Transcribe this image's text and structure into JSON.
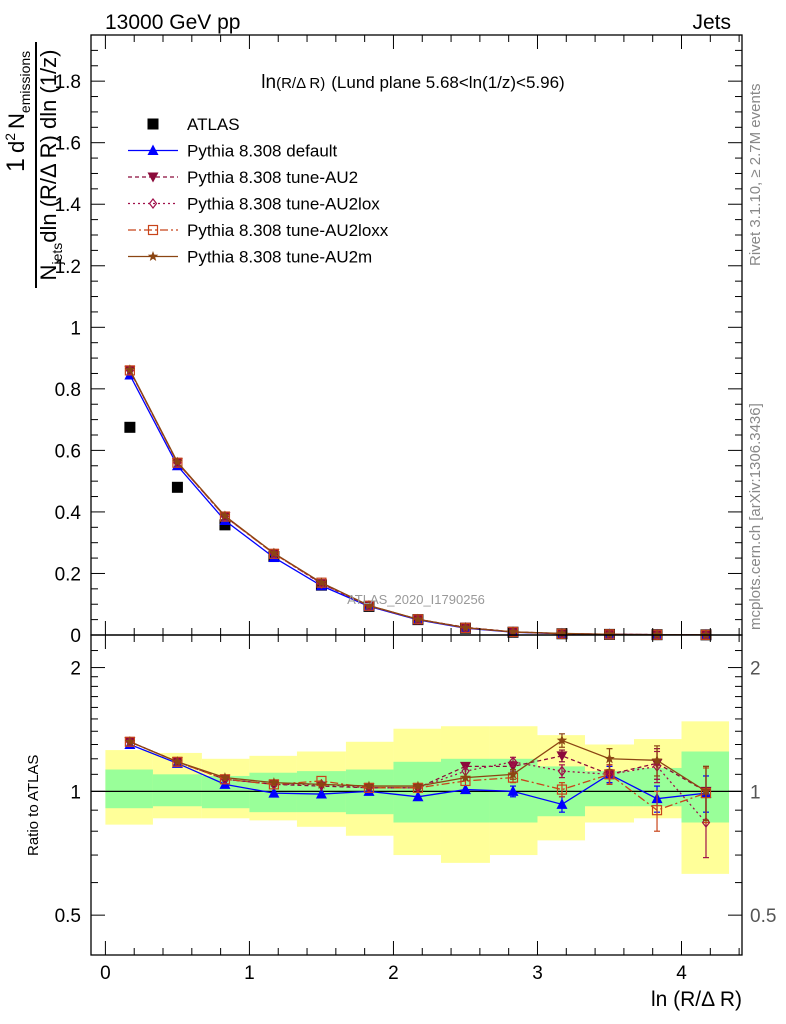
{
  "header": {
    "left": "13000 GeV pp",
    "right": "Jets"
  },
  "side": {
    "rivet": "Rivet 3.1.10, ≥ 2.7M events",
    "mcplots": "mcplots.cern.ch [arXiv:1306.3436]"
  },
  "title": {
    "ln_part": "ln",
    "arg_part": "(R/Δ R)",
    "rest": "(Lund plane 5.68<ln(1/z)<5.96)"
  },
  "watermark": "ATLAS_2020_I1790256",
  "ylabel": {
    "numer_base": "d",
    "numer_sup": "2",
    "numer_N": "N",
    "numer_sub": "emissions",
    "denom_N": "N",
    "denom_sub": "jets",
    "denom_rest": "dln (R/Δ R) dln (1/z)",
    "one": "1"
  },
  "ratio_ylabel": "Ratio to ATLAS",
  "xlabel": "ln (R/Δ R)",
  "legend": [
    {
      "label": "ATLAS",
      "color": "#000000",
      "marker": "square-filled",
      "dash": ""
    },
    {
      "label": "Pythia 8.308 default",
      "color": "#0000ff",
      "marker": "triangle-up",
      "dash": ""
    },
    {
      "label": "Pythia 8.308 tune-AU2",
      "color": "#8b0a3a",
      "marker": "triangle-down",
      "dash": "4,3"
    },
    {
      "label": "Pythia 8.308 tune-AU2lox",
      "color": "#a0104a",
      "marker": "diamond-open",
      "dash": "2,3"
    },
    {
      "label": "Pythia 8.308 tune-AU2loxx",
      "color": "#c8441a",
      "marker": "square-open",
      "dash": "8,3,2,3"
    },
    {
      "label": "Pythia 8.308 tune-AU2m",
      "color": "#8b4513",
      "marker": "star",
      "dash": ""
    }
  ],
  "chart_data": {
    "type": "line",
    "x": [
      0.17,
      0.5,
      0.83,
      1.17,
      1.5,
      1.83,
      2.17,
      2.5,
      2.83,
      3.17,
      3.5,
      3.83,
      4.17
    ],
    "xlim": [
      -0.1,
      4.42
    ],
    "xticks": [
      0,
      1,
      2,
      3,
      4
    ],
    "main": {
      "ylim": [
        0,
        1.95
      ],
      "yticks": [
        0,
        0.2,
        0.4,
        0.6,
        0.8,
        1,
        1.2,
        1.4,
        1.6,
        1.8
      ],
      "series": [
        {
          "name": "ATLAS",
          "values": [
            0.675,
            0.48,
            0.358,
            0.255,
            0.162,
            0.093,
            0.05,
            0.022,
            0.009,
            0.004,
            0.002,
            0.001,
            0.0005
          ]
        },
        {
          "name": "Pythia 8.308 default",
          "values": [
            0.845,
            0.55,
            0.372,
            0.252,
            0.16,
            0.093,
            0.049,
            0.022,
            0.009,
            0.004,
            0.0022,
            0.001,
            0.0005
          ]
        },
        {
          "name": "Pythia 8.308 tune-AU2",
          "values": [
            0.86,
            0.56,
            0.385,
            0.265,
            0.167,
            0.095,
            0.051,
            0.025,
            0.01,
            0.0048,
            0.0022,
            0.0012,
            0.0005
          ]
        },
        {
          "name": "Pythia 8.308 tune-AU2lox",
          "values": [
            0.86,
            0.56,
            0.385,
            0.265,
            0.167,
            0.095,
            0.051,
            0.024,
            0.01,
            0.0046,
            0.0022,
            0.0012,
            0.0004
          ]
        },
        {
          "name": "Pythia 8.308 tune-AU2loxx",
          "values": [
            0.86,
            0.56,
            0.385,
            0.264,
            0.17,
            0.095,
            0.051,
            0.023,
            0.01,
            0.004,
            0.0022,
            0.0009,
            0.0005
          ]
        },
        {
          "name": "Pythia 8.308 tune-AU2m",
          "values": [
            0.862,
            0.562,
            0.387,
            0.266,
            0.17,
            0.096,
            0.051,
            0.024,
            0.01,
            0.0054,
            0.0024,
            0.0012,
            0.0005
          ]
        }
      ]
    },
    "ratio": {
      "ylim": [
        0.4,
        2.4
      ],
      "ytick_values": [
        0.5,
        1,
        2
      ],
      "ytick_labels": [
        "0.5",
        "1",
        "2"
      ],
      "bins": [
        0,
        0.33,
        0.67,
        1.0,
        1.33,
        1.67,
        2.0,
        2.33,
        2.67,
        3.0,
        3.33,
        3.67,
        4.0,
        4.33
      ],
      "band_green": [
        [
          0.91,
          1.13
        ],
        [
          0.92,
          1.1
        ],
        [
          0.91,
          1.09
        ],
        [
          0.89,
          1.11
        ],
        [
          0.89,
          1.12
        ],
        [
          0.88,
          1.13
        ],
        [
          0.84,
          1.18
        ],
        [
          0.84,
          1.2
        ],
        [
          0.84,
          1.2
        ],
        [
          0.87,
          1.15
        ],
        [
          0.92,
          1.12
        ],
        [
          0.92,
          1.14
        ],
        [
          0.84,
          1.25
        ]
      ],
      "band_yellow": [
        [
          0.83,
          1.26
        ],
        [
          0.86,
          1.24
        ],
        [
          0.86,
          1.2
        ],
        [
          0.85,
          1.22
        ],
        [
          0.82,
          1.25
        ],
        [
          0.78,
          1.32
        ],
        [
          0.7,
          1.42
        ],
        [
          0.67,
          1.44
        ],
        [
          0.7,
          1.44
        ],
        [
          0.76,
          1.37
        ],
        [
          0.84,
          1.3
        ],
        [
          0.86,
          1.34
        ],
        [
          0.63,
          1.48
        ]
      ],
      "series": [
        {
          "name": "Pythia 8.308 default",
          "values": [
            1.3,
            1.17,
            1.04,
            0.99,
            0.985,
            1.0,
            0.97,
            1.01,
            1.0,
            0.93,
            1.1,
            0.96,
            0.99
          ],
          "errors": [
            0.01,
            0.01,
            0.01,
            0.01,
            0.01,
            0.01,
            0.015,
            0.02,
            0.03,
            0.04,
            0.05,
            0.07,
            0.1
          ]
        },
        {
          "name": "Pythia 8.308 tune-AU2",
          "values": [
            1.32,
            1.18,
            1.07,
            1.04,
            1.03,
            1.02,
            1.02,
            1.15,
            1.15,
            1.22,
            1.1,
            1.17,
            1.0
          ],
          "errors": [
            0.01,
            0.01,
            0.01,
            0.01,
            0.01,
            0.01,
            0.015,
            0.02,
            0.03,
            0.04,
            0.06,
            0.1,
            0.15
          ]
        },
        {
          "name": "Pythia 8.308 tune-AU2lox",
          "values": [
            1.32,
            1.18,
            1.07,
            1.04,
            1.04,
            1.02,
            1.02,
            1.12,
            1.18,
            1.12,
            1.1,
            1.15,
            0.84
          ],
          "errors": [
            0.01,
            0.01,
            0.01,
            0.01,
            0.01,
            0.01,
            0.015,
            0.02,
            0.03,
            0.04,
            0.06,
            0.1,
            0.15
          ]
        },
        {
          "name": "Pythia 8.308 tune-AU2loxx",
          "values": [
            1.32,
            1.18,
            1.07,
            1.04,
            1.06,
            1.02,
            1.02,
            1.06,
            1.08,
            1.01,
            1.1,
            0.9,
            0.99
          ],
          "errors": [
            0.01,
            0.01,
            0.01,
            0.01,
            0.01,
            0.01,
            0.015,
            0.02,
            0.03,
            0.04,
            0.06,
            0.1,
            0.15
          ]
        },
        {
          "name": "Pythia 8.308 tune-AU2m",
          "values": [
            1.32,
            1.18,
            1.08,
            1.05,
            1.04,
            1.03,
            1.03,
            1.08,
            1.1,
            1.33,
            1.2,
            1.19,
            1.0
          ],
          "errors": [
            0.01,
            0.01,
            0.01,
            0.01,
            0.01,
            0.01,
            0.015,
            0.02,
            0.03,
            0.05,
            0.07,
            0.1,
            0.15
          ]
        }
      ]
    }
  }
}
